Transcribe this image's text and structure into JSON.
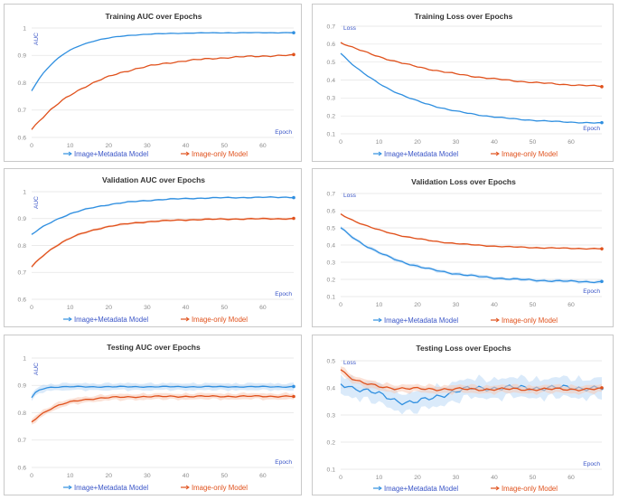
{
  "colors": {
    "image_metadata": "#2f8fe0",
    "image_only": "#e0511c",
    "band_blue": "#bcd9f5",
    "band_orange": "#f7c9b5"
  },
  "legend": {
    "series1": "Image+Metadata Model",
    "series2": "Image-only Model"
  },
  "chart_data": [
    {
      "id": "train-auc",
      "type": "line",
      "title": "Training AUC over Epochs",
      "xlabel": "Epoch",
      "ylabel": "AUC",
      "xlim": [
        0,
        68
      ],
      "ylim": [
        0.6,
        1.0
      ],
      "xticks": [
        "0",
        "10",
        "20",
        "30",
        "40",
        "50",
        "60"
      ],
      "yticks": [
        "0.6",
        "0.7",
        "0.8",
        "0.9",
        "1"
      ],
      "series": [
        {
          "name": "Image+Metadata Model",
          "start": 0.77,
          "end": 0.983,
          "rate": 0.12,
          "jitter": 0.001,
          "band": 0
        },
        {
          "name": "Image-only Model",
          "start": 0.63,
          "end": 0.905,
          "rate": 0.06,
          "jitter": 0.003,
          "band": 0
        }
      ]
    },
    {
      "id": "train-loss",
      "type": "line",
      "title": "Training Loss over Epochs",
      "xlabel": "Epoch",
      "ylabel": "Loss",
      "xlim": [
        0,
        68
      ],
      "ylim": [
        0.1,
        0.7
      ],
      "xticks": [
        "0",
        "10",
        "20",
        "30",
        "40",
        "50",
        "60"
      ],
      "yticks": [
        "0.1",
        "0.2",
        "0.3",
        "0.4",
        "0.5",
        "0.6",
        "0.7"
      ],
      "series": [
        {
          "name": "Image+Metadata Model",
          "start": 0.55,
          "end": 0.15,
          "rate": 0.055,
          "jitter": 0.003,
          "band": 0
        },
        {
          "name": "Image-only Model",
          "start": 0.61,
          "end": 0.34,
          "rate": 0.035,
          "jitter": 0.004,
          "band": 0
        }
      ]
    },
    {
      "id": "val-auc",
      "type": "line",
      "title": "Validation AUC over Epochs",
      "xlabel": "Epoch",
      "ylabel": "AUC",
      "xlim": [
        0,
        68
      ],
      "ylim": [
        0.6,
        1.0
      ],
      "xticks": [
        "0",
        "10",
        "20",
        "30",
        "40",
        "50",
        "60"
      ],
      "yticks": [
        "0.6",
        "0.7",
        "0.8",
        "0.9",
        "1"
      ],
      "series": [
        {
          "name": "Image+Metadata Model",
          "start": 0.84,
          "end": 0.98,
          "rate": 0.08,
          "jitter": 0.002,
          "band": 0.004
        },
        {
          "name": "Image-only Model",
          "start": 0.72,
          "end": 0.9,
          "rate": 0.09,
          "jitter": 0.002,
          "band": 0.006
        }
      ]
    },
    {
      "id": "val-loss",
      "type": "line",
      "title": "Validation Loss over Epochs",
      "xlabel": "Epoch",
      "ylabel": "Loss",
      "xlim": [
        0,
        68
      ],
      "ylim": [
        0.1,
        0.7
      ],
      "xticks": [
        "0",
        "10",
        "20",
        "30",
        "40",
        "50",
        "60"
      ],
      "yticks": [
        "0.1",
        "0.2",
        "0.3",
        "0.4",
        "0.5",
        "0.6",
        "0.7"
      ],
      "series": [
        {
          "name": "Image+Metadata Model",
          "start": 0.5,
          "end": 0.18,
          "rate": 0.06,
          "jitter": 0.005,
          "band": 0.012
        },
        {
          "name": "Image-only Model",
          "start": 0.58,
          "end": 0.375,
          "rate": 0.06,
          "jitter": 0.003,
          "band": 0.006
        }
      ]
    },
    {
      "id": "test-auc",
      "type": "line",
      "title": "Testing AUC over Epochs",
      "xlabel": "Epoch",
      "ylabel": "AUC",
      "xlim": [
        0,
        68
      ],
      "ylim": [
        0.6,
        1.0
      ],
      "xticks": [
        "0",
        "10",
        "20",
        "30",
        "40",
        "50",
        "60"
      ],
      "yticks": [
        "0.6",
        "0.7",
        "0.8",
        "0.9",
        "1"
      ],
      "series": [
        {
          "name": "Image+Metadata Model",
          "start": 0.855,
          "end": 0.895,
          "rate": 0.6,
          "jitter": 0.002,
          "band": 0.016
        },
        {
          "name": "Image-only Model",
          "start": 0.765,
          "end": 0.86,
          "rate": 0.15,
          "jitter": 0.003,
          "band": 0.014
        }
      ]
    },
    {
      "id": "test-loss",
      "type": "line",
      "title": "Testing Loss over Epochs",
      "xlabel": "Epoch",
      "ylabel": "Loss",
      "xlim": [
        0,
        68
      ],
      "ylim": [
        0.1,
        0.5
      ],
      "xticks": [
        "0",
        "10",
        "20",
        "30",
        "40",
        "50",
        "60"
      ],
      "yticks": [
        "0.1",
        "0.2",
        "0.3",
        "0.4",
        "0.5"
      ],
      "series": [
        {
          "name": "Image+Metadata Model",
          "start": 0.41,
          "end": 0.4,
          "rate": 0.08,
          "jitter": 0.012,
          "band": 0.045,
          "dip": -0.055
        },
        {
          "name": "Image-only Model",
          "start": 0.47,
          "end": 0.395,
          "rate": 0.2,
          "jitter": 0.006,
          "band": 0.018
        }
      ]
    }
  ]
}
